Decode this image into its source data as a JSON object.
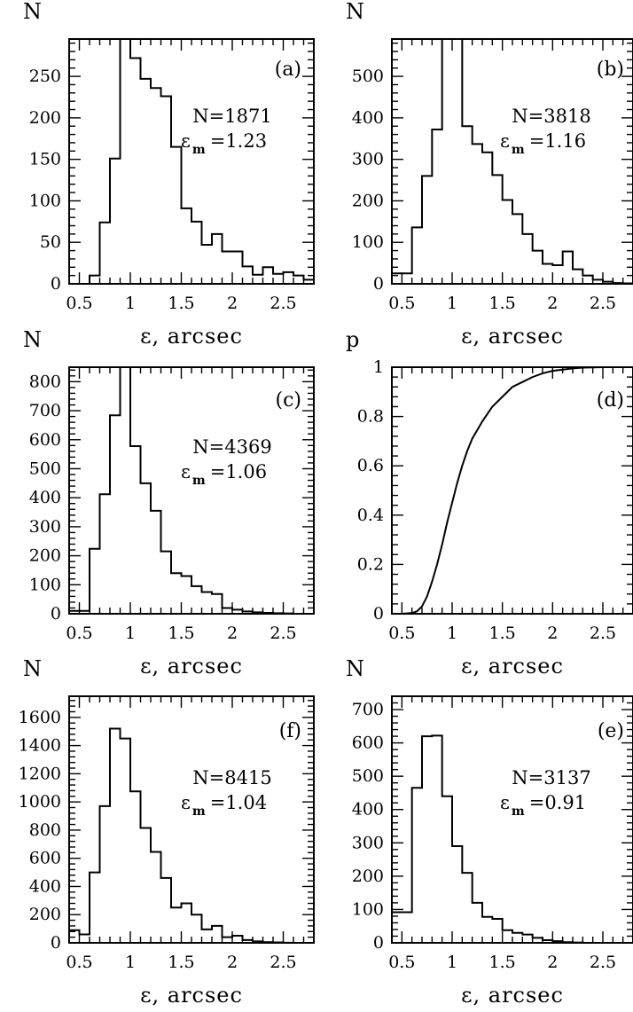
{
  "chart_data": [
    {
      "panel": "(a)",
      "type": "histogram",
      "ylabel": "N",
      "xlabel": "ε, arcsec",
      "xlim": [
        0.4,
        2.8
      ],
      "ylim": [
        0,
        295
      ],
      "yticks": [
        0,
        50,
        100,
        150,
        200,
        250
      ],
      "yticks_display": [
        "0",
        "50",
        "100",
        "150",
        "200",
        "250"
      ],
      "xticks": [
        0.5,
        1,
        1.5,
        2,
        2.5
      ],
      "xticks_display": [
        "0.5",
        "1",
        "1.5",
        "2",
        "2.5"
      ],
      "edges": [
        0.4,
        0.5,
        0.6,
        0.7,
        0.8,
        0.9,
        1.0,
        1.1,
        1.2,
        1.3,
        1.4,
        1.5,
        1.6,
        1.7,
        1.8,
        1.9,
        2.0,
        2.1,
        2.2,
        2.3,
        2.4,
        2.5,
        2.6,
        2.7,
        2.8
      ],
      "counts": [
        0,
        0,
        10,
        74,
        151,
        295,
        272,
        247,
        236,
        226,
        165,
        91,
        75,
        47,
        60,
        39,
        39,
        21,
        11,
        20,
        12,
        14,
        10,
        5
      ],
      "annotation_n": "N=1871",
      "annotation_em_value": "=1.23",
      "annotation_sym": "ε",
      "annotation_sub": "m"
    },
    {
      "panel": "(b)",
      "type": "histogram",
      "ylabel": "N",
      "xlabel": "ε, arcsec",
      "xlim": [
        0.4,
        2.8
      ],
      "ylim": [
        0,
        590
      ],
      "yticks": [
        0,
        100,
        200,
        300,
        400,
        500
      ],
      "yticks_display": [
        "0",
        "100",
        "200",
        "300",
        "400",
        "500"
      ],
      "xticks": [
        0.5,
        1,
        1.5,
        2,
        2.5
      ],
      "xticks_display": [
        "0.5",
        "1",
        "1.5",
        "2",
        "2.5"
      ],
      "edges": [
        0.4,
        0.5,
        0.6,
        0.7,
        0.8,
        0.9,
        1.0,
        1.1,
        1.2,
        1.3,
        1.4,
        1.5,
        1.6,
        1.7,
        1.8,
        1.9,
        2.0,
        2.1,
        2.2,
        2.3,
        2.4,
        2.5,
        2.6,
        2.7,
        2.8
      ],
      "counts": [
        25,
        25,
        136,
        260,
        372,
        590,
        592,
        380,
        337,
        317,
        262,
        202,
        168,
        120,
        80,
        48,
        45,
        78,
        35,
        20,
        10,
        5,
        2,
        1
      ],
      "annotation_n": "N=3818",
      "annotation_em_value": "=1.16",
      "annotation_sym": "ε",
      "annotation_sub": "m"
    },
    {
      "panel": "(c)",
      "type": "histogram",
      "ylabel": "N",
      "xlabel": "ε, arcsec",
      "xlim": [
        0.4,
        2.8
      ],
      "ylim": [
        0,
        850
      ],
      "yticks": [
        0,
        100,
        200,
        300,
        400,
        500,
        600,
        700,
        800
      ],
      "yticks_display": [
        "0",
        "100",
        "200",
        "300",
        "400",
        "500",
        "600",
        "700",
        "800"
      ],
      "xticks": [
        0.5,
        1,
        1.5,
        2,
        2.5
      ],
      "xticks_display": [
        "0.5",
        "1",
        "1.5",
        "2",
        "2.5"
      ],
      "edges": [
        0.4,
        0.5,
        0.6,
        0.7,
        0.8,
        0.9,
        1.0,
        1.1,
        1.2,
        1.3,
        1.4,
        1.5,
        1.6,
        1.7,
        1.8,
        1.9,
        2.0,
        2.1,
        2.2,
        2.3,
        2.4,
        2.5,
        2.6,
        2.7,
        2.8
      ],
      "counts": [
        10,
        10,
        224,
        412,
        684,
        850,
        578,
        450,
        355,
        215,
        140,
        130,
        95,
        75,
        68,
        20,
        14,
        8,
        5,
        3,
        2,
        1,
        0,
        0
      ],
      "annotation_n": "N=4369",
      "annotation_em_value": "=1.06",
      "annotation_sym": "ε",
      "annotation_sub": "m"
    },
    {
      "panel": "(d)",
      "type": "line",
      "ylabel": "p",
      "xlabel": "ε, arcsec",
      "xlim": [
        0.4,
        2.8
      ],
      "ylim": [
        0,
        1
      ],
      "yticks": [
        0,
        0.2,
        0.4,
        0.6,
        0.8,
        1
      ],
      "yticks_display": [
        "0",
        "0.2",
        "0.4",
        "0.6",
        "0.8",
        "1"
      ],
      "xticks": [
        0.5,
        1,
        1.5,
        2,
        2.5
      ],
      "xticks_display": [
        "0.5",
        "1",
        "1.5",
        "2",
        "2.5"
      ],
      "x": [
        0.5,
        0.6,
        0.65,
        0.7,
        0.75,
        0.8,
        0.85,
        0.9,
        0.95,
        1.0,
        1.05,
        1.1,
        1.15,
        1.2,
        1.3,
        1.4,
        1.5,
        1.6,
        1.7,
        1.8,
        1.9,
        2.0,
        2.1,
        2.2,
        2.3,
        2.5,
        2.8
      ],
      "y": [
        0.0,
        0.003,
        0.01,
        0.03,
        0.07,
        0.13,
        0.2,
        0.28,
        0.37,
        0.45,
        0.53,
        0.6,
        0.66,
        0.71,
        0.78,
        0.84,
        0.88,
        0.92,
        0.94,
        0.96,
        0.975,
        0.985,
        0.99,
        0.995,
        0.998,
        1.0,
        1.0
      ]
    },
    {
      "panel": "(f)",
      "type": "histogram",
      "ylabel": "N",
      "xlabel": "ε, arcsec",
      "xlim": [
        0.4,
        2.8
      ],
      "ylim": [
        0,
        1750
      ],
      "yticks": [
        0,
        200,
        400,
        600,
        800,
        1000,
        1200,
        1400,
        1600
      ],
      "yticks_display": [
        "0",
        "200",
        "400",
        "600",
        "800",
        "1000",
        "1200",
        "1400",
        "1600"
      ],
      "xticks": [
        0.5,
        1,
        1.5,
        2,
        2.5
      ],
      "xticks_display": [
        "0.5",
        "1",
        "1.5",
        "2",
        "2.5"
      ],
      "edges": [
        0.4,
        0.5,
        0.6,
        0.7,
        0.8,
        0.9,
        1.0,
        1.1,
        1.2,
        1.3,
        1.4,
        1.5,
        1.6,
        1.7,
        1.8,
        1.9,
        2.0,
        2.1,
        2.2,
        2.3,
        2.4,
        2.5,
        2.6,
        2.7,
        2.8
      ],
      "counts": [
        90,
        60,
        500,
        970,
        1520,
        1450,
        1075,
        815,
        645,
        460,
        250,
        280,
        200,
        95,
        120,
        40,
        50,
        20,
        10,
        5,
        3,
        1,
        0,
        0
      ],
      "annotation_n": "N=8415",
      "annotation_em_value": "=1.04",
      "annotation_sym": "ε",
      "annotation_sub": "m"
    },
    {
      "panel": "(e)",
      "type": "histogram",
      "ylabel": "N",
      "xlabel": "ε, arcsec",
      "xlim": [
        0.4,
        2.8
      ],
      "ylim": [
        0,
        740
      ],
      "yticks": [
        0,
        100,
        200,
        300,
        400,
        500,
        600,
        700
      ],
      "yticks_display": [
        "0",
        "100",
        "200",
        "300",
        "400",
        "500",
        "600",
        "700"
      ],
      "xticks": [
        0.5,
        1,
        1.5,
        2,
        2.5
      ],
      "xticks_display": [
        "0.5",
        "1",
        "1.5",
        "2",
        "2.5"
      ],
      "edges": [
        0.4,
        0.5,
        0.6,
        0.7,
        0.8,
        0.9,
        1.0,
        1.1,
        1.2,
        1.3,
        1.4,
        1.5,
        1.6,
        1.7,
        1.8,
        1.9,
        2.0,
        2.1,
        2.2,
        2.3,
        2.4,
        2.5,
        2.6,
        2.7,
        2.8
      ],
      "counts": [
        92,
        92,
        465,
        620,
        622,
        440,
        290,
        210,
        120,
        78,
        72,
        38,
        30,
        25,
        15,
        8,
        5,
        2,
        1,
        0,
        0,
        0,
        0,
        0
      ],
      "annotation_n": "N=3137",
      "annotation_em_value": "=0.91",
      "annotation_sym": "ε",
      "annotation_sub": "m"
    }
  ]
}
